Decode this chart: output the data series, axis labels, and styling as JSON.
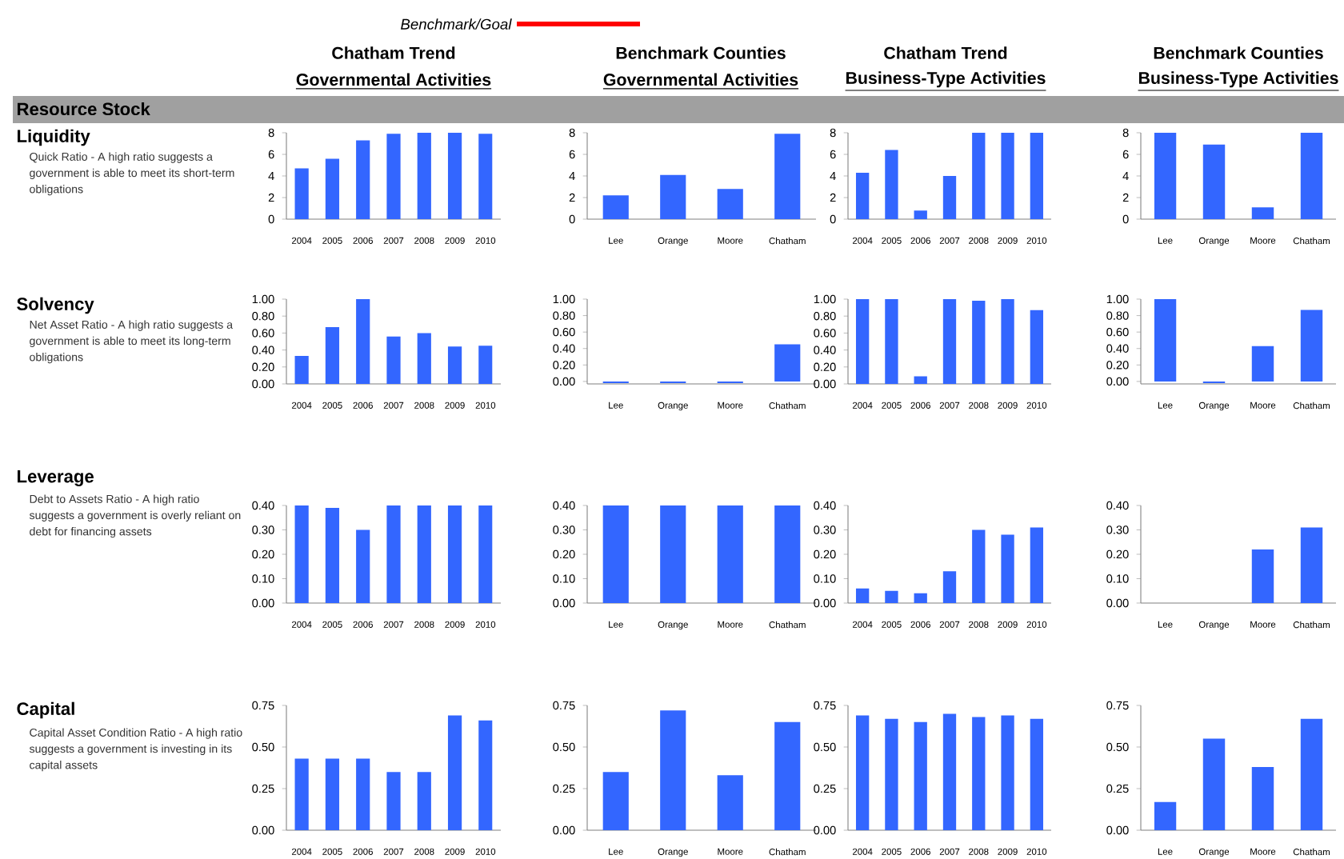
{
  "chart_data": [
    {
      "type": "other",
      "annotations": [
        "Benchmark/Goal",
        "Chatham Trend",
        "Benchmark Counties",
        "Chatham Trend",
        "Benchmark Counties",
        "Governmental Activities",
        "Governmental Activities",
        "Business-Type Activities",
        "Business-Type Activities",
        "Resource Stock",
        "Liquidity",
        "Quick Ratio - A high ratio suggests a government is able to meet its short-term obligations",
        "Solvency",
        "Net Asset Ratio - A high ratio suggests a government is able to meet its long-term obligations",
        "Leverage",
        "Debt to Assets Ratio - A high ratio suggests a government is overly reliant on debt for financing assets",
        "Capital",
        "Capital Asset Condition Ratio - A high ratio suggests a government is investing in its capital assets"
      ]
    },
    {
      "type": "bar",
      "categories": [
        "2004",
        "2005",
        "2006",
        "2007",
        "2008",
        "2009",
        "2010"
      ],
      "values": [
        4.7,
        5.6,
        7.3,
        7.9,
        8.0,
        8.0,
        7.9
      ],
      "color": "#3366ff",
      "ylim": [
        0,
        8
      ],
      "yticks": [
        0,
        2,
        4,
        6,
        8
      ]
    },
    {
      "type": "bar",
      "categories": [
        "Lee",
        "Orange",
        "Moore",
        "Chatham"
      ],
      "values": [
        2.2,
        4.1,
        2.8,
        7.9
      ],
      "color": "#3366ff",
      "ylim": [
        0,
        8
      ],
      "yticks": [
        0,
        2,
        4,
        6,
        8
      ]
    },
    {
      "type": "bar",
      "categories": [
        "2004",
        "2005",
        "2006",
        "2007",
        "2008",
        "2009",
        "2010"
      ],
      "values": [
        4.3,
        6.4,
        0.8,
        4.0,
        8.0,
        8.0,
        8.0
      ],
      "color": "#3366ff",
      "ylim": [
        0,
        8
      ],
      "yticks": [
        0,
        2,
        4,
        6,
        8
      ]
    },
    {
      "type": "bar",
      "categories": [
        "Lee",
        "Orange",
        "Moore",
        "Chatham"
      ],
      "values": [
        8.0,
        6.9,
        1.1,
        8.0
      ],
      "color": "#3366ff",
      "ylim": [
        0,
        8
      ],
      "yticks": [
        0,
        2,
        4,
        6,
        8
      ]
    },
    {
      "type": "bar",
      "categories": [
        "2004",
        "2005",
        "2006",
        "2007",
        "2008",
        "2009",
        "2010"
      ],
      "values": [
        0.33,
        0.67,
        1.0,
        0.56,
        0.6,
        0.44,
        0.45
      ],
      "color": "#3366ff",
      "ylim": [
        0,
        1
      ],
      "yticks": [
        {
          "value": 0,
          "label": "0.00"
        },
        {
          "value": 0.2,
          "label": "0.20"
        },
        {
          "value": 0.4,
          "label": "0.40"
        },
        {
          "value": 0.6,
          "label": "0.60"
        },
        {
          "value": 0.8,
          "label": "0.80"
        },
        {
          "value": 1,
          "label": "1.00"
        }
      ]
    },
    {
      "type": "bar",
      "categories": [
        "Lee",
        "Orange",
        "Moore",
        "Chatham"
      ],
      "values": [
        -0.02,
        -0.02,
        -0.02,
        0.45
      ],
      "color": "#3366ff",
      "ylim": [
        -0.03,
        1
      ],
      "yticks": [
        {
          "value": 0,
          "label": "0.00"
        },
        {
          "value": 0.2,
          "label": "0.20"
        },
        {
          "value": 0.4,
          "label": "0.40"
        },
        {
          "value": 0.6,
          "label": "0.60"
        },
        {
          "value": 0.8,
          "label": "0.80"
        },
        {
          "value": 1,
          "label": "1.00"
        }
      ]
    },
    {
      "type": "bar",
      "categories": [
        "2004",
        "2005",
        "2006",
        "2007",
        "2008",
        "2009",
        "2010"
      ],
      "values": [
        1.0,
        1.0,
        0.09,
        1.0,
        0.98,
        1.0,
        0.87
      ],
      "color": "#3366ff",
      "ylim": [
        0,
        1
      ],
      "yticks": [
        {
          "value": 0,
          "label": "0.00"
        },
        {
          "value": 0.2,
          "label": "0.20"
        },
        {
          "value": 0.4,
          "label": "0.40"
        },
        {
          "value": 0.6,
          "label": "0.60"
        },
        {
          "value": 0.8,
          "label": "0.80"
        },
        {
          "value": 1,
          "label": "1.00"
        }
      ]
    },
    {
      "type": "bar",
      "categories": [
        "Lee",
        "Orange",
        "Moore",
        "Chatham"
      ],
      "values": [
        1.0,
        -0.02,
        0.43,
        0.87
      ],
      "color": "#3366ff",
      "ylim": [
        -0.03,
        1
      ],
      "yticks": [
        {
          "value": 0,
          "label": "0.00"
        },
        {
          "value": 0.2,
          "label": "0.20"
        },
        {
          "value": 0.4,
          "label": "0.40"
        },
        {
          "value": 0.6,
          "label": "0.60"
        },
        {
          "value": 0.8,
          "label": "0.80"
        },
        {
          "value": 1,
          "label": "1.00"
        }
      ]
    },
    {
      "type": "bar",
      "categories": [
        "2004",
        "2005",
        "2006",
        "2007",
        "2008",
        "2009",
        "2010"
      ],
      "values": [
        0.4,
        0.39,
        0.3,
        0.4,
        0.4,
        0.4,
        0.4
      ],
      "color": "#3366ff",
      "ylim": [
        0,
        0.4
      ],
      "yticks": [
        {
          "value": 0,
          "label": "0.00"
        },
        {
          "value": 0.1,
          "label": "0.10"
        },
        {
          "value": 0.2,
          "label": "0.20"
        },
        {
          "value": 0.3,
          "label": "0.30"
        },
        {
          "value": 0.4,
          "label": "0.40"
        }
      ]
    },
    {
      "type": "bar",
      "categories": [
        "Lee",
        "Orange",
        "Moore",
        "Chatham"
      ],
      "values": [
        0.4,
        0.4,
        0.4,
        0.4
      ],
      "color": "#3366ff",
      "ylim": [
        0,
        0.4
      ],
      "yticks": [
        {
          "value": 0,
          "label": "0.00"
        },
        {
          "value": 0.1,
          "label": "0.10"
        },
        {
          "value": 0.2,
          "label": "0.20"
        },
        {
          "value": 0.3,
          "label": "0.30"
        },
        {
          "value": 0.4,
          "label": "0.40"
        }
      ]
    },
    {
      "type": "bar",
      "categories": [
        "2004",
        "2005",
        "2006",
        "2007",
        "2008",
        "2009",
        "2010"
      ],
      "values": [
        0.06,
        0.05,
        0.04,
        0.13,
        0.3,
        0.28,
        0.31
      ],
      "color": "#3366ff",
      "ylim": [
        0,
        0.4
      ],
      "yticks": [
        {
          "value": 0,
          "label": "0.00"
        },
        {
          "value": 0.1,
          "label": "0.10"
        },
        {
          "value": 0.2,
          "label": "0.20"
        },
        {
          "value": 0.3,
          "label": "0.30"
        },
        {
          "value": 0.4,
          "label": "0.40"
        }
      ]
    },
    {
      "type": "bar",
      "categories": [
        "Lee",
        "Orange",
        "Moore",
        "Chatham"
      ],
      "values": [
        0,
        0,
        0.22,
        0.31
      ],
      "color": "#3366ff",
      "ylim": [
        0,
        0.4
      ],
      "yticks": [
        {
          "value": 0,
          "label": "0.00"
        },
        {
          "value": 0.1,
          "label": "0.10"
        },
        {
          "value": 0.2,
          "label": "0.20"
        },
        {
          "value": 0.3,
          "label": "0.30"
        },
        {
          "value": 0.4,
          "label": "0.40"
        }
      ]
    },
    {
      "type": "bar",
      "categories": [
        "2004",
        "2005",
        "2006",
        "2007",
        "2008",
        "2009",
        "2010"
      ],
      "values": [
        0.43,
        0.43,
        0.43,
        0.35,
        0.35,
        0.69,
        0.66
      ],
      "color": "#3366ff",
      "ylim": [
        0,
        0.75
      ],
      "yticks": [
        {
          "value": 0,
          "label": "0.00"
        },
        {
          "value": 0.25,
          "label": "0.25"
        },
        {
          "value": 0.5,
          "label": "0.50"
        },
        {
          "value": 0.75,
          "label": "0.75"
        }
      ]
    },
    {
      "type": "bar",
      "categories": [
        "Lee",
        "Orange",
        "Moore",
        "Chatham"
      ],
      "values": [
        0.35,
        0.72,
        0.33,
        0.65
      ],
      "color": "#3366ff",
      "ylim": [
        0,
        0.75
      ],
      "yticks": [
        {
          "value": 0,
          "label": "0.00"
        },
        {
          "value": 0.25,
          "label": "0.25"
        },
        {
          "value": 0.5,
          "label": "0.50"
        },
        {
          "value": 0.75,
          "label": "0.75"
        }
      ]
    },
    {
      "type": "bar",
      "categories": [
        "2004",
        "2005",
        "2006",
        "2007",
        "2008",
        "2009",
        "2010"
      ],
      "values": [
        0.69,
        0.67,
        0.65,
        0.7,
        0.68,
        0.69,
        0.67
      ],
      "color": "#3366ff",
      "ylim": [
        0,
        0.75
      ],
      "yticks": [
        {
          "value": 0,
          "label": "0.00"
        },
        {
          "value": 0.25,
          "label": "0.25"
        },
        {
          "value": 0.5,
          "label": "0.50"
        },
        {
          "value": 0.75,
          "label": "0.75"
        }
      ]
    },
    {
      "type": "bar",
      "categories": [
        "Lee",
        "Orange",
        "Moore",
        "Chatham"
      ],
      "values": [
        0.17,
        0.55,
        0.38,
        0.67
      ],
      "color": "#3366ff",
      "ylim": [
        0,
        0.75
      ],
      "yticks": [
        {
          "value": 0,
          "label": "0.00"
        },
        {
          "value": 0.25,
          "label": "0.25"
        },
        {
          "value": 0.5,
          "label": "0.50"
        },
        {
          "value": 0.75,
          "label": "0.75"
        }
      ]
    }
  ]
}
